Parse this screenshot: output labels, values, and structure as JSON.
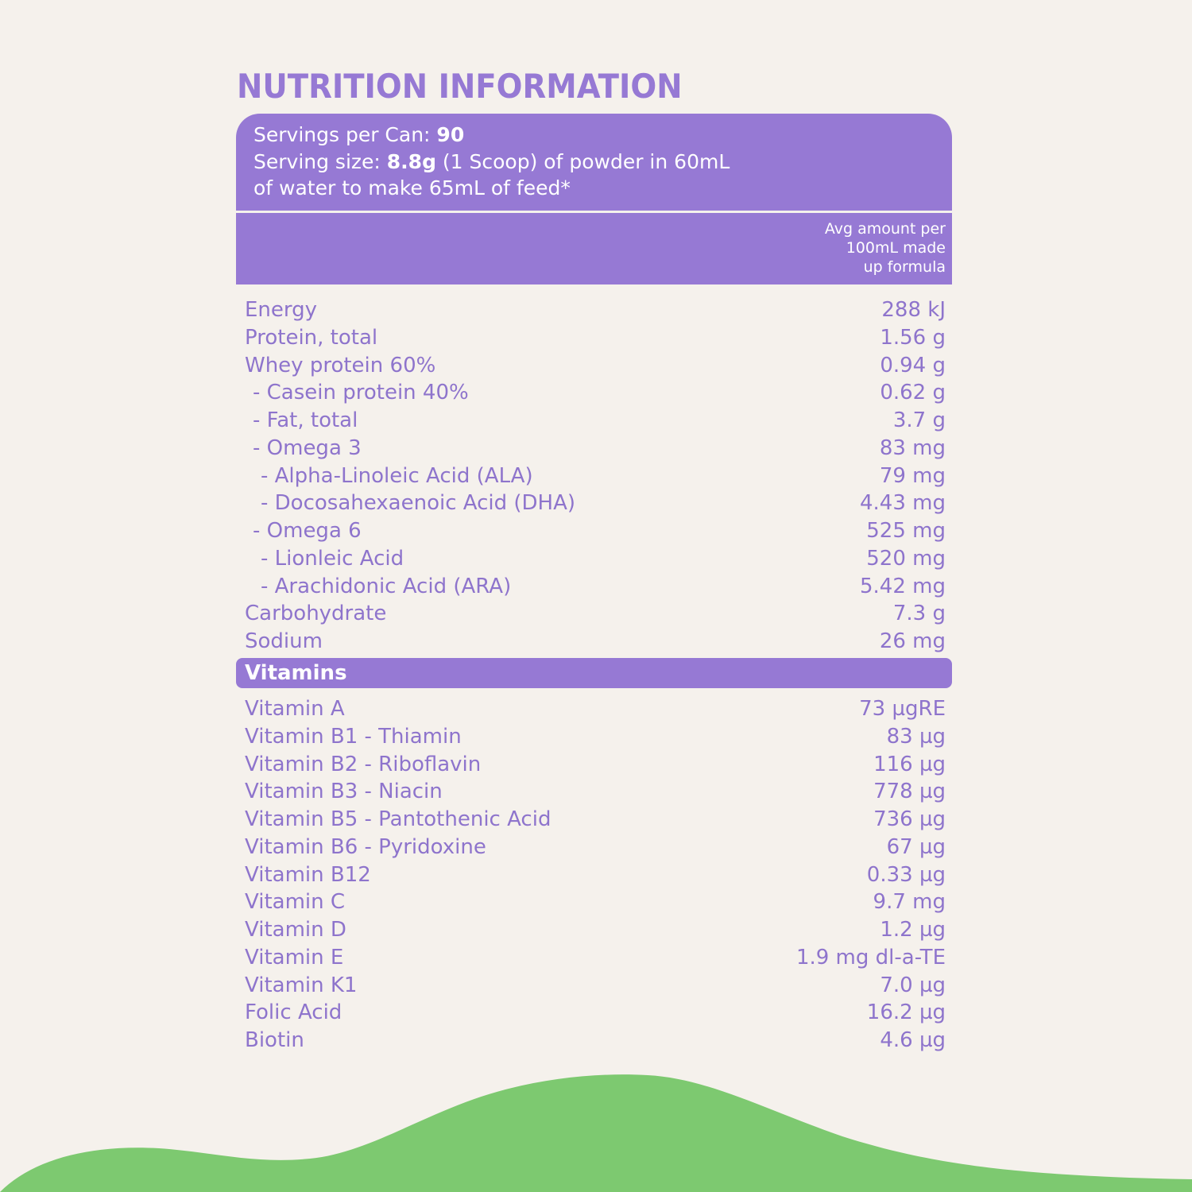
{
  "title": "NUTRITION INFORMATION",
  "serving": {
    "servings_label": "Servings per Can: ",
    "servings_value": "90",
    "size_label": "Serving size: ",
    "size_value": "8.8g",
    "size_rest": " (1 Scoop) of powder in 60mL",
    "size_line2": "of water to make 65mL of feed*"
  },
  "column_header": {
    "line1": "Avg amount per",
    "line2": "100mL made",
    "line3": "up formula"
  },
  "nutrients": [
    {
      "label": "Energy",
      "value": "288 kJ",
      "indent": 0
    },
    {
      "label": "Protein, total",
      "value": "1.56 g",
      "indent": 0
    },
    {
      "label": "Whey protein 60%",
      "value": "0.94 g",
      "indent": 0
    },
    {
      "label": "- Casein protein 40%",
      "value": "0.62 g",
      "indent": 1
    },
    {
      "label": "- Fat, total",
      "value": "3.7 g",
      "indent": 1
    },
    {
      "label": "- Omega 3",
      "value": "83 mg",
      "indent": 1
    },
    {
      "label": "- Alpha-Linoleic Acid (ALA)",
      "value": "79 mg",
      "indent": 2
    },
    {
      "label": "- Docosahexaenoic Acid (DHA)",
      "value": "4.43 mg",
      "indent": 2
    },
    {
      "label": "- Omega 6",
      "value": "525 mg",
      "indent": 1
    },
    {
      "label": "- Lionleic Acid",
      "value": "520 mg",
      "indent": 2
    },
    {
      "label": "- Arachidonic Acid (ARA)",
      "value": "5.42 mg",
      "indent": 2
    },
    {
      "label": "Carbohydrate",
      "value": "7.3 g",
      "indent": 0
    },
    {
      "label": "Sodium",
      "value": "26 mg",
      "indent": 0
    }
  ],
  "vitamins_header": "Vitamins",
  "vitamins": [
    {
      "label": "Vitamin A",
      "value": "73 µgRE"
    },
    {
      "label": "Vitamin B1 - Thiamin",
      "value": "83 µg"
    },
    {
      "label": "Vitamin B2 - Riboflavin",
      "value": "116 µg"
    },
    {
      "label": "Vitamin B3 - Niacin",
      "value": "778 µg"
    },
    {
      "label": "Vitamin B5 - Pantothenic Acid",
      "value": "736 µg"
    },
    {
      "label": "Vitamin B6 - Pyridoxine",
      "value": "67 µg"
    },
    {
      "label": "Vitamin B12",
      "value": "0.33 µg"
    },
    {
      "label": "Vitamin C",
      "value": "9.7 mg"
    },
    {
      "label": "Vitamin D",
      "value": "1.2 µg"
    },
    {
      "label": "Vitamin E",
      "value": "1.9 mg dl-a-TE"
    },
    {
      "label": "Vitamin K1",
      "value": "7.0 µg"
    },
    {
      "label": "Folic Acid",
      "value": "16.2 µg"
    },
    {
      "label": "Biotin",
      "value": "4.6 µg"
    }
  ],
  "colors": {
    "accent_purple": "#9679d4",
    "text_purple": "#8e74cc",
    "background": "#f5f1ec",
    "wave_green": "#7dc970"
  }
}
